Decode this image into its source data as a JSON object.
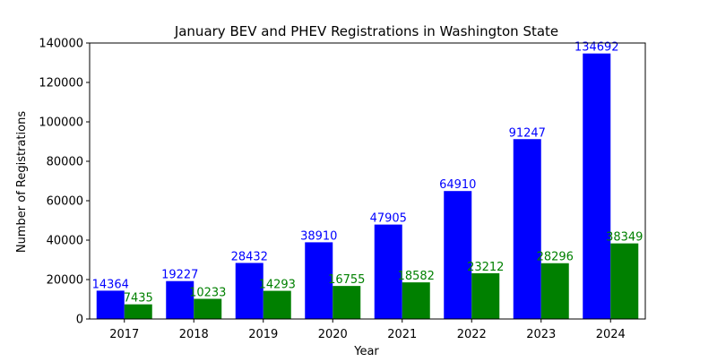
{
  "chart_data": {
    "type": "bar",
    "title": "January BEV and PHEV Registrations in Washington State",
    "xlabel": "Year",
    "ylabel": "Number of Registrations",
    "categories": [
      "2017",
      "2018",
      "2019",
      "2020",
      "2021",
      "2022",
      "2023",
      "2024"
    ],
    "series": [
      {
        "values": [
          14364,
          19227,
          28432,
          38910,
          47905,
          64910,
          91247,
          134692
        ],
        "color": "#0000ff",
        "label_color": "#0000ff"
      },
      {
        "values": [
          7435,
          10233,
          14293,
          16755,
          18582,
          23212,
          28296,
          38349
        ],
        "color": "#008000",
        "label_color": "#008000"
      }
    ],
    "ylim": [
      0,
      140000
    ],
    "yticks": [
      0,
      20000,
      40000,
      60000,
      80000,
      100000,
      120000,
      140000
    ],
    "grid": false,
    "legend": "none"
  }
}
